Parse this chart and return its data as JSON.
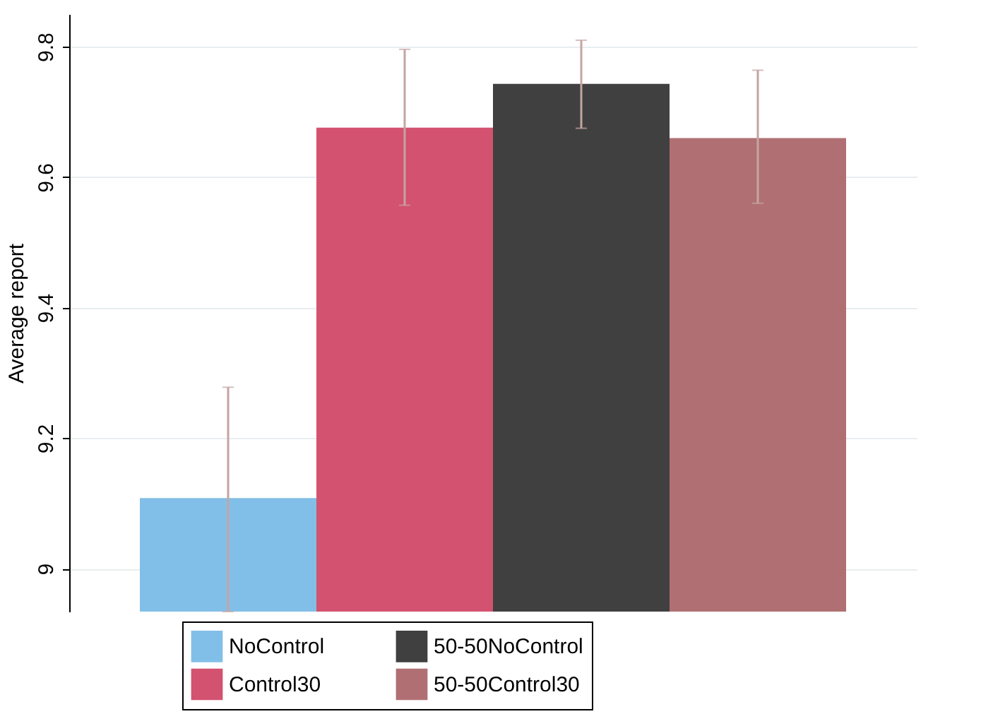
{
  "chart_data": {
    "type": "bar",
    "ylabel": "Average report",
    "categories": [
      null
    ],
    "series": [
      {
        "name": "NoControl",
        "color": "#82bfe8",
        "values": [
          9.108
        ],
        "errors": [
          [
            8.934,
            9.278
          ]
        ]
      },
      {
        "name": "Control30",
        "color": "#d3526f",
        "values": [
          9.676
        ],
        "errors": [
          [
            9.557,
            9.796
          ]
        ]
      },
      {
        "name": "50-50NoControl",
        "color": "#404040",
        "values": [
          9.743
        ],
        "errors": [
          [
            9.675,
            9.81
          ]
        ]
      },
      {
        "name": "50-50Control30",
        "color": "#b07073",
        "values": [
          9.66
        ],
        "errors": [
          [
            9.56,
            9.764
          ]
        ]
      }
    ],
    "ylim": [
      8.934,
      9.85
    ],
    "yticks": [
      9,
      9.2,
      9.4,
      9.6,
      9.8
    ],
    "grid": "y",
    "legend": "bottom"
  }
}
